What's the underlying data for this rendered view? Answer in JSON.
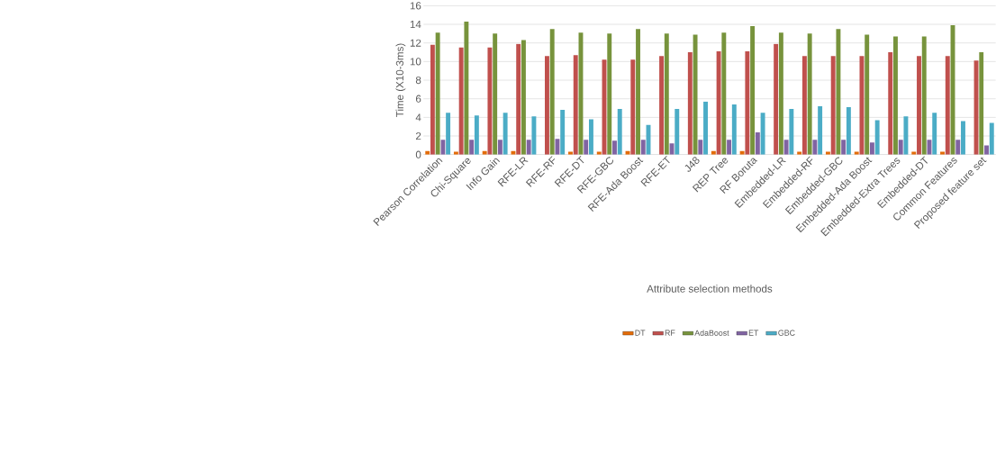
{
  "chart_data": {
    "type": "bar",
    "xlabel": "Attribute selection methods",
    "ylabel": "Time (X10-3ms)",
    "categories": [
      "Pearson Correlation",
      "Chi-Square",
      "Info Gain",
      "RFE-LR",
      "RFE-RF",
      "RFE-DT",
      "RFE-GBC",
      "RFE-Ada Boost",
      "RFE-ET",
      "J48",
      "REP  Tree",
      "RF Boruta",
      "Embedded-LR",
      "Embedded-RF",
      "Embedded-GBC",
      "Embedded-Ada Boost",
      "Embedded-Extra Trees",
      "Embedded-DT",
      "Common Features",
      "Proposed feature set"
    ],
    "series": [
      {
        "name": "DT",
        "color": "#e36c09",
        "values": [
          0.4,
          0.3,
          0.4,
          0.4,
          null,
          0.3,
          0.3,
          0.4,
          null,
          null,
          0.4,
          0.4,
          null,
          0.3,
          0.3,
          0.3,
          null,
          0.3,
          0.3,
          null
        ]
      },
      {
        "name": "RF",
        "color": "#c0504d",
        "values": [
          11.8,
          11.5,
          11.5,
          11.9,
          10.6,
          10.7,
          10.2,
          10.2,
          10.6,
          11.0,
          11.1,
          11.1,
          11.9,
          10.6,
          10.6,
          10.6,
          11.0,
          10.6,
          10.6,
          10.1
        ]
      },
      {
        "name": "AdaBoost",
        "color": "#77933c",
        "values": [
          13.1,
          14.3,
          13.0,
          12.3,
          13.5,
          13.1,
          13.0,
          13.5,
          13.0,
          12.9,
          13.1,
          13.8,
          13.1,
          13.0,
          13.5,
          12.9,
          12.7,
          12.7,
          13.9,
          11.0
        ]
      },
      {
        "name": "ET",
        "color": "#8064a2",
        "values": [
          1.6,
          1.6,
          1.6,
          1.6,
          1.7,
          1.6,
          1.5,
          1.6,
          1.2,
          1.6,
          1.6,
          2.4,
          1.6,
          1.6,
          1.6,
          1.3,
          1.6,
          1.6,
          1.6,
          1.0
        ]
      },
      {
        "name": "GBC",
        "color": "#4bacc6",
        "values": [
          4.5,
          4.2,
          4.5,
          4.1,
          4.8,
          3.8,
          4.9,
          3.2,
          4.9,
          5.7,
          5.4,
          4.5,
          4.9,
          5.2,
          5.1,
          3.7,
          4.1,
          4.5,
          3.6,
          3.4
        ]
      }
    ],
    "ylim": [
      0,
      16
    ],
    "yticks": [
      0,
      2,
      4,
      6,
      8,
      10,
      12,
      14,
      16
    ],
    "grid": "y",
    "legend": "bottom"
  }
}
